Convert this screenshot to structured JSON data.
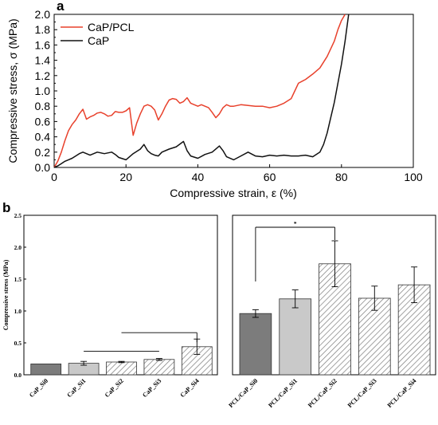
{
  "panel_labels": {
    "a": "a",
    "b": "b"
  },
  "chart_data": [
    {
      "panel": "a",
      "type": "line",
      "xlabel": "Compressive strain, ε (%)",
      "ylabel": "Compressive stress, σ (MPa)",
      "xlim": [
        0,
        100
      ],
      "ylim": [
        0,
        2.0
      ],
      "x_ticks": [
        "0",
        "20",
        "40",
        "60",
        "80",
        "100"
      ],
      "y_ticks": [
        "0.0",
        "0.2",
        "0.4",
        "0.6",
        "0.8",
        "1.0",
        "1.2",
        "1.4",
        "1.6",
        "1.8",
        "2.0"
      ],
      "grid": false,
      "legend_position": "top-left",
      "series": [
        {
          "name": "CaP/PCL",
          "color": "#e8412c",
          "x": [
            0,
            1,
            2,
            3,
            4,
            5,
            6,
            7,
            8,
            9,
            10,
            11,
            12,
            13,
            14,
            15,
            16,
            17,
            18,
            19,
            20,
            21,
            22,
            23,
            24,
            25,
            26,
            27,
            28,
            29,
            30,
            31,
            32,
            33,
            34,
            35,
            36,
            37,
            38,
            39,
            40,
            41,
            42,
            43,
            44,
            45,
            46,
            47,
            48,
            49,
            50,
            52,
            54,
            56,
            58,
            60,
            62,
            64,
            66,
            67,
            68,
            70,
            72,
            74,
            76,
            78,
            79,
            80,
            81
          ],
          "y": [
            0.0,
            0.08,
            0.2,
            0.35,
            0.48,
            0.56,
            0.62,
            0.7,
            0.76,
            0.63,
            0.66,
            0.68,
            0.71,
            0.72,
            0.7,
            0.67,
            0.68,
            0.73,
            0.72,
            0.72,
            0.74,
            0.78,
            0.42,
            0.58,
            0.7,
            0.8,
            0.82,
            0.8,
            0.75,
            0.62,
            0.7,
            0.8,
            0.88,
            0.9,
            0.89,
            0.84,
            0.86,
            0.91,
            0.84,
            0.82,
            0.8,
            0.82,
            0.8,
            0.78,
            0.72,
            0.65,
            0.7,
            0.78,
            0.82,
            0.8,
            0.8,
            0.82,
            0.81,
            0.8,
            0.8,
            0.78,
            0.8,
            0.84,
            0.9,
            1.0,
            1.1,
            1.15,
            1.22,
            1.3,
            1.45,
            1.65,
            1.8,
            1.92,
            2.0
          ]
        },
        {
          "name": "CaP",
          "color": "#111111",
          "x": [
            0,
            1,
            2,
            3,
            4,
            5,
            6,
            7,
            8,
            10,
            12,
            14,
            16,
            17,
            18,
            20,
            22,
            24,
            25,
            26,
            27,
            28,
            29,
            30,
            32,
            34,
            36,
            37,
            38,
            40,
            42,
            44,
            46,
            47,
            48,
            50,
            52,
            54,
            56,
            58,
            60,
            62,
            64,
            66,
            68,
            70,
            72,
            74,
            75,
            76,
            77,
            78,
            79,
            80,
            81,
            82
          ],
          "y": [
            0.0,
            0.02,
            0.05,
            0.08,
            0.1,
            0.12,
            0.15,
            0.18,
            0.2,
            0.16,
            0.2,
            0.18,
            0.2,
            0.17,
            0.13,
            0.1,
            0.18,
            0.24,
            0.3,
            0.22,
            0.18,
            0.16,
            0.15,
            0.2,
            0.24,
            0.27,
            0.34,
            0.22,
            0.15,
            0.12,
            0.17,
            0.2,
            0.28,
            0.22,
            0.14,
            0.1,
            0.15,
            0.2,
            0.15,
            0.14,
            0.16,
            0.15,
            0.16,
            0.15,
            0.15,
            0.16,
            0.14,
            0.2,
            0.3,
            0.45,
            0.65,
            0.85,
            1.1,
            1.35,
            1.65,
            2.0
          ]
        }
      ]
    },
    {
      "panel": "b-left",
      "type": "bar",
      "ylabel": "Compressive stress (MPa)",
      "ylim": [
        0,
        2.5
      ],
      "y_ticks": [
        "0.0",
        "0.5",
        "1.0",
        "1.5",
        "2.0",
        "2.5"
      ],
      "categories": [
        "CaP_Si0",
        "CaP_Si1",
        "CaP_Si2",
        "CaP_Si3",
        "CaP_Si4"
      ],
      "values": [
        0.17,
        0.18,
        0.2,
        0.24,
        0.44
      ],
      "errors": [
        0,
        0.03,
        0.01,
        0.015,
        0.12
      ],
      "bar_styles": [
        "solid-dark",
        "solid-light",
        "hatched",
        "hatched",
        "hatched"
      ],
      "brackets": [
        {
          "from": 1,
          "to": 3,
          "label": ""
        },
        {
          "from": 2,
          "to": 4,
          "label": ""
        }
      ]
    },
    {
      "panel": "b-right",
      "type": "bar",
      "ylim": [
        0,
        2.5
      ],
      "categories": [
        "PCL/CaP_Si0",
        "PCL/CaP_Si1",
        "PCL/CaP_Si2",
        "PCL/CaP_Si3",
        "PCL/CaP_Si4"
      ],
      "values": [
        0.96,
        1.19,
        1.74,
        1.2,
        1.41
      ],
      "errors": [
        0.06,
        0.14,
        0.36,
        0.19,
        0.28
      ],
      "bar_styles": [
        "solid-dark",
        "solid-light",
        "hatched",
        "hatched",
        "hatched"
      ],
      "brackets": [
        {
          "from": 0,
          "to": 2,
          "label": "*"
        }
      ]
    }
  ]
}
